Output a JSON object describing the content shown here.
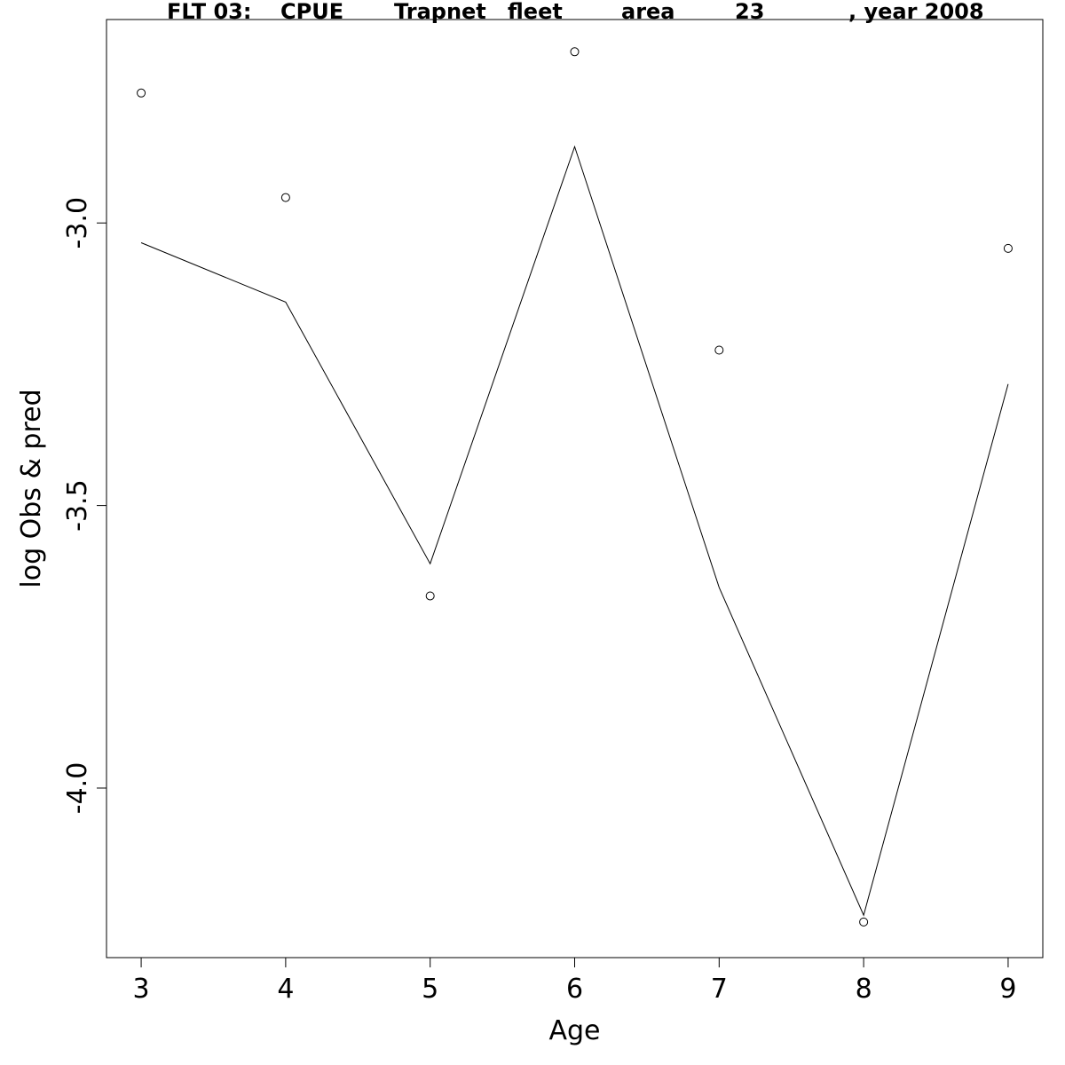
{
  "chart_data": {
    "type": "line",
    "title_parts": [
      "FLT 03:",
      "CPUE",
      "Trapnet",
      "fleet",
      "area",
      "23",
      ", year 2008"
    ],
    "xlabel": "Age",
    "ylabel": "log Obs & pred",
    "x": [
      3,
      4,
      5,
      6,
      7,
      8,
      9
    ],
    "xlim": [
      2.76,
      9.24
    ],
    "ylim": [
      -4.3,
      -2.64
    ],
    "x_ticks": [
      3,
      4,
      5,
      6,
      7,
      8,
      9
    ],
    "y_ticks": [
      -4.0,
      -3.5,
      -3.0
    ],
    "y_tick_labels": [
      "-4.0",
      "-3.5",
      "-3.0"
    ],
    "grid": false,
    "series": [
      {
        "style": "points",
        "values": [
          -2.77,
          -2.955,
          -3.66,
          -2.697,
          -3.225,
          -4.237,
          -3.045
        ]
      },
      {
        "style": "line",
        "values": [
          -3.035,
          -3.14,
          -3.603,
          -2.865,
          -3.645,
          -4.225,
          -3.285
        ]
      }
    ]
  }
}
